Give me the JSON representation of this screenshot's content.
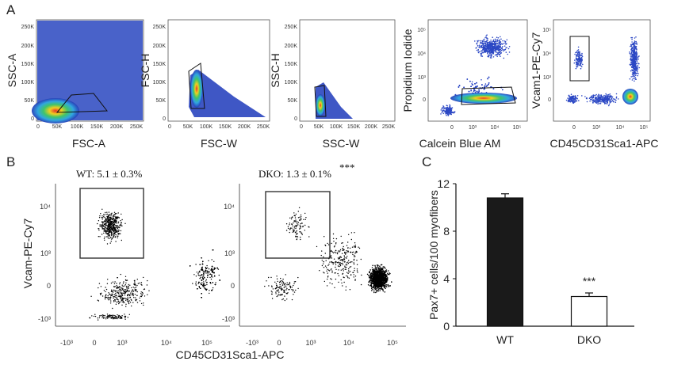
{
  "panel_labels": {
    "a": "A",
    "b": "B",
    "c": "C"
  },
  "panel_a": {
    "plots": [
      {
        "xlabel": "FSC-A",
        "ylabel": "SSC-A",
        "yticks": [
          "0",
          "50K",
          "100K",
          "150K",
          "200K",
          "250K"
        ],
        "xticks": [
          "0",
          "50K",
          "100K",
          "150K",
          "200K",
          "250K"
        ]
      },
      {
        "xlabel": "FSC-W",
        "ylabel": "FSC-H",
        "yticks": [
          "0",
          "50K",
          "100K",
          "150K",
          "200K",
          "250K"
        ],
        "xticks": [
          "0",
          "50K",
          "100K",
          "150K",
          "200K",
          "250K"
        ]
      },
      {
        "xlabel": "SSC-W",
        "ylabel": "SSC-H",
        "yticks": [
          "0",
          "50K",
          "100K",
          "150K",
          "200K",
          "250K"
        ],
        "xticks": [
          "0",
          "50K",
          "100K",
          "150K",
          "200K",
          "250K"
        ]
      },
      {
        "xlabel": "Calcein Blue AM",
        "ylabel": "Propidium Iodide",
        "yticks": [
          "0",
          "10³",
          "10⁴",
          "10⁵"
        ],
        "xticks": [
          "0",
          "10³",
          "10⁴",
          "10⁵"
        ]
      },
      {
        "xlabel": "CD45CD31Sca1-APC",
        "ylabel": "Vcam1-PE-Cy7",
        "yticks": [
          "0",
          "10³",
          "10⁴",
          "10⁵"
        ],
        "xticks": [
          "0",
          "10³",
          "10⁴",
          "10⁵"
        ]
      }
    ]
  },
  "panel_b": {
    "xlabel": "CD45CD31Sca1-APC",
    "ylabel": "Vcam-PE-Cy7",
    "yticks": [
      "10⁴",
      "10³",
      "0",
      "-10³"
    ],
    "xticks": [
      "-10³",
      "0",
      "10³",
      "10⁴",
      "10⁵"
    ],
    "wt_label": "WT: 5.1 ± 0.3%",
    "dko_label": "DKO: 1.3 ± 0.1%",
    "dko_sig": "***"
  },
  "chart_data": {
    "type": "bar",
    "categories": [
      "WT",
      "DKO"
    ],
    "values": [
      10.8,
      2.5
    ],
    "errors": [
      0.35,
      0.3
    ],
    "ylabel": "Pax7+ cells/100 myofibers",
    "ylim": [
      0,
      12
    ],
    "yticks": [
      "0",
      "4",
      "8",
      "12"
    ],
    "annotations": [
      "***"
    ],
    "colors": {
      "WT": "#1a1a1a",
      "DKO": "#ffffff"
    }
  }
}
